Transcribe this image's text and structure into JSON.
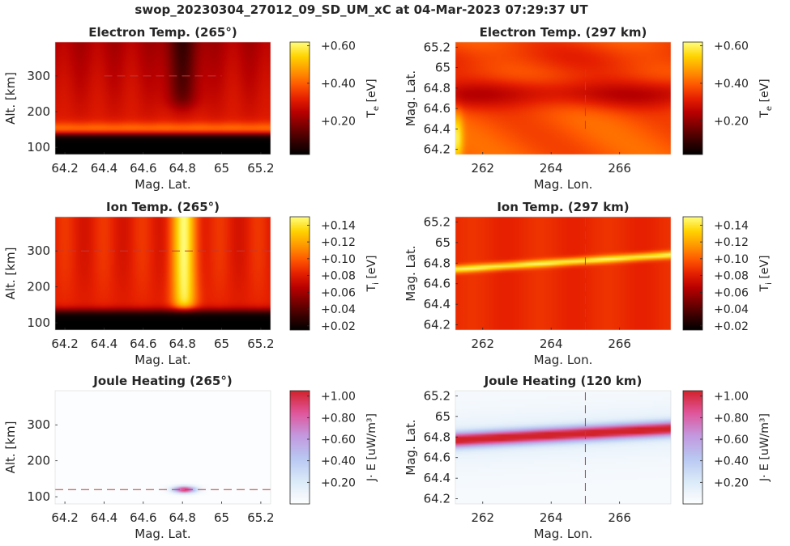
{
  "title": "swop_20230304_27012_09_SD_UM_xC at 04-Mar-2023 07:29:37 UT",
  "colors": {
    "hot": [
      "#000000",
      "#3a0000",
      "#7a0000",
      "#b80000",
      "#e62000",
      "#ff5a00",
      "#ff9a00",
      "#ffd400",
      "#ffff80"
    ],
    "joule": [
      "#ffffff",
      "#dbeaf8",
      "#b8c8f2",
      "#c39ae0",
      "#e0579d",
      "#d2232b"
    ],
    "guide_line": "#c0393b"
  },
  "chart_data": [
    {
      "id": "te-alt",
      "type": "heatmap",
      "title": "Electron Temp. (265°)",
      "xlabel": "Mag. Lat.",
      "ylabel": "Alt. [km]",
      "xlim": [
        64.15,
        65.25
      ],
      "ylim": [
        80,
        395
      ],
      "xticks": [
        "64.2",
        "64.4",
        "64.6",
        "64.8",
        "65",
        "65.2"
      ],
      "xtick_values": [
        64.2,
        64.4,
        64.6,
        64.8,
        65.0,
        65.2
      ],
      "yticks": [
        "100",
        "200",
        "300"
      ],
      "ytick_values": [
        100,
        200,
        300
      ],
      "colorbar": {
        "label": "T",
        "sub": "e",
        "unit": " [eV]",
        "ticks": [
          "+0.20",
          "+0.40",
          "+0.60"
        ],
        "tick_values": [
          0.2,
          0.4,
          0.6
        ],
        "range": [
          0.02,
          0.62
        ],
        "cmap": "hot"
      },
      "field": "te_alt",
      "guide": {
        "orientation": "horizontal",
        "value": 300,
        "from": 64.4,
        "to": 65.0
      }
    },
    {
      "id": "te-lon",
      "type": "heatmap",
      "title": "Electron Temp. (297 km)",
      "xlabel": "Mag. Lon.",
      "ylabel": "Mag. Lat.",
      "xlim": [
        261.2,
        267.5
      ],
      "ylim": [
        64.15,
        65.25
      ],
      "xticks": [
        "262",
        "264",
        "266"
      ],
      "xtick_values": [
        262,
        264,
        266
      ],
      "yticks": [
        "64.2",
        "64.4",
        "64.6",
        "64.8",
        "65",
        "65.2"
      ],
      "ytick_values": [
        64.2,
        64.4,
        64.6,
        64.8,
        65.0,
        65.2
      ],
      "colorbar": {
        "label": "T",
        "sub": "e",
        "unit": " [eV]",
        "ticks": [
          "+0.20",
          "+0.40",
          "+0.60"
        ],
        "tick_values": [
          0.2,
          0.4,
          0.6
        ],
        "range": [
          0.02,
          0.62
        ],
        "cmap": "hot"
      },
      "field": "te_lon",
      "guide": {
        "orientation": "vertical",
        "value": 265,
        "from": 64.4,
        "to": 65.0
      }
    },
    {
      "id": "ti-alt",
      "type": "heatmap",
      "title": "Ion Temp. (265°)",
      "xlabel": "Mag. Lat.",
      "ylabel": "Alt. [km]",
      "xlim": [
        64.15,
        65.25
      ],
      "ylim": [
        80,
        395
      ],
      "xticks": [
        "64.2",
        "64.4",
        "64.6",
        "64.8",
        "65",
        "65.2"
      ],
      "xtick_values": [
        64.2,
        64.4,
        64.6,
        64.8,
        65.0,
        65.2
      ],
      "yticks": [
        "100",
        "200",
        "300"
      ],
      "ytick_values": [
        100,
        200,
        300
      ],
      "colorbar": {
        "label": "T",
        "sub": "i",
        "unit": " [eV]",
        "ticks": [
          "+0.02",
          "+0.04",
          "+0.06",
          "+0.08",
          "+0.10",
          "+0.12",
          "+0.14"
        ],
        "tick_values": [
          0.02,
          0.04,
          0.06,
          0.08,
          0.1,
          0.12,
          0.14
        ],
        "range": [
          0.015,
          0.15
        ],
        "cmap": "hot"
      },
      "field": "ti_alt",
      "guide": {
        "orientation": "horizontal",
        "value": 300,
        "from": 64.15,
        "to": 65.25
      }
    },
    {
      "id": "ti-lon",
      "type": "heatmap",
      "title": "Ion Temp. (297 km)",
      "xlabel": "Mag. Lon.",
      "ylabel": "Mag. Lat.",
      "xlim": [
        261.2,
        267.5
      ],
      "ylim": [
        64.15,
        65.25
      ],
      "xticks": [
        "262",
        "264",
        "266"
      ],
      "xtick_values": [
        262,
        264,
        266
      ],
      "yticks": [
        "64.2",
        "64.4",
        "64.6",
        "64.8",
        "65",
        "65.2"
      ],
      "ytick_values": [
        64.2,
        64.4,
        64.6,
        64.8,
        65.0,
        65.2
      ],
      "colorbar": {
        "label": "T",
        "sub": "i",
        "unit": " [eV]",
        "ticks": [
          "+0.02",
          "+0.04",
          "+0.06",
          "+0.08",
          "+0.10",
          "+0.12",
          "+0.14"
        ],
        "tick_values": [
          0.02,
          0.04,
          0.06,
          0.08,
          0.1,
          0.12,
          0.14
        ],
        "range": [
          0.015,
          0.15
        ],
        "cmap": "hot"
      },
      "field": "ti_lon",
      "guide": {
        "orientation": "vertical",
        "value": 265,
        "from": 64.15,
        "to": 65.25
      }
    },
    {
      "id": "jh-alt",
      "type": "heatmap",
      "title": "Joule Heating (265°)",
      "xlabel": "Mag. Lat.",
      "ylabel": "Alt. [km]",
      "xlim": [
        64.15,
        65.25
      ],
      "ylim": [
        80,
        395
      ],
      "xticks": [
        "64.2",
        "64.4",
        "64.6",
        "64.8",
        "65",
        "65.2"
      ],
      "xtick_values": [
        64.2,
        64.4,
        64.6,
        64.8,
        65.0,
        65.2
      ],
      "yticks": [
        "100",
        "200",
        "300"
      ],
      "ytick_values": [
        100,
        200,
        300
      ],
      "colorbar": {
        "label": "J· E",
        "sub": "",
        "unit": " [uW/m³]",
        "ticks": [
          "+0.20",
          "+0.40",
          "+0.60",
          "+0.80",
          "+1.00"
        ],
        "tick_values": [
          0.2,
          0.4,
          0.6,
          0.8,
          1.0
        ],
        "range": [
          0.0,
          1.05
        ],
        "cmap": "joule"
      },
      "field": "jh_alt",
      "guide": {
        "orientation": "horizontal",
        "value": 120,
        "from": 64.15,
        "to": 65.25
      }
    },
    {
      "id": "jh-lon",
      "type": "heatmap",
      "title": "Joule Heating (120 km)",
      "xlabel": "Mag. Lon.",
      "ylabel": "Mag. Lat.",
      "xlim": [
        261.2,
        267.5
      ],
      "ylim": [
        64.15,
        65.25
      ],
      "xticks": [
        "262",
        "264",
        "266"
      ],
      "xtick_values": [
        262,
        264,
        266
      ],
      "yticks": [
        "64.2",
        "64.4",
        "64.6",
        "64.8",
        "65",
        "65.2"
      ],
      "ytick_values": [
        64.2,
        64.4,
        64.6,
        64.8,
        65.0,
        65.2
      ],
      "colorbar": {
        "label": "J· E",
        "sub": "",
        "unit": " [uW/m³]",
        "ticks": [
          "+0.20",
          "+0.40",
          "+0.60",
          "+0.80",
          "+1.00"
        ],
        "tick_values": [
          0.2,
          0.4,
          0.6,
          0.8,
          1.0
        ],
        "range": [
          0.0,
          1.05
        ],
        "cmap": "joule"
      },
      "field": "jh_lon",
      "guide": {
        "orientation": "vertical",
        "value": 265,
        "from": 64.15,
        "to": 65.25
      }
    }
  ]
}
